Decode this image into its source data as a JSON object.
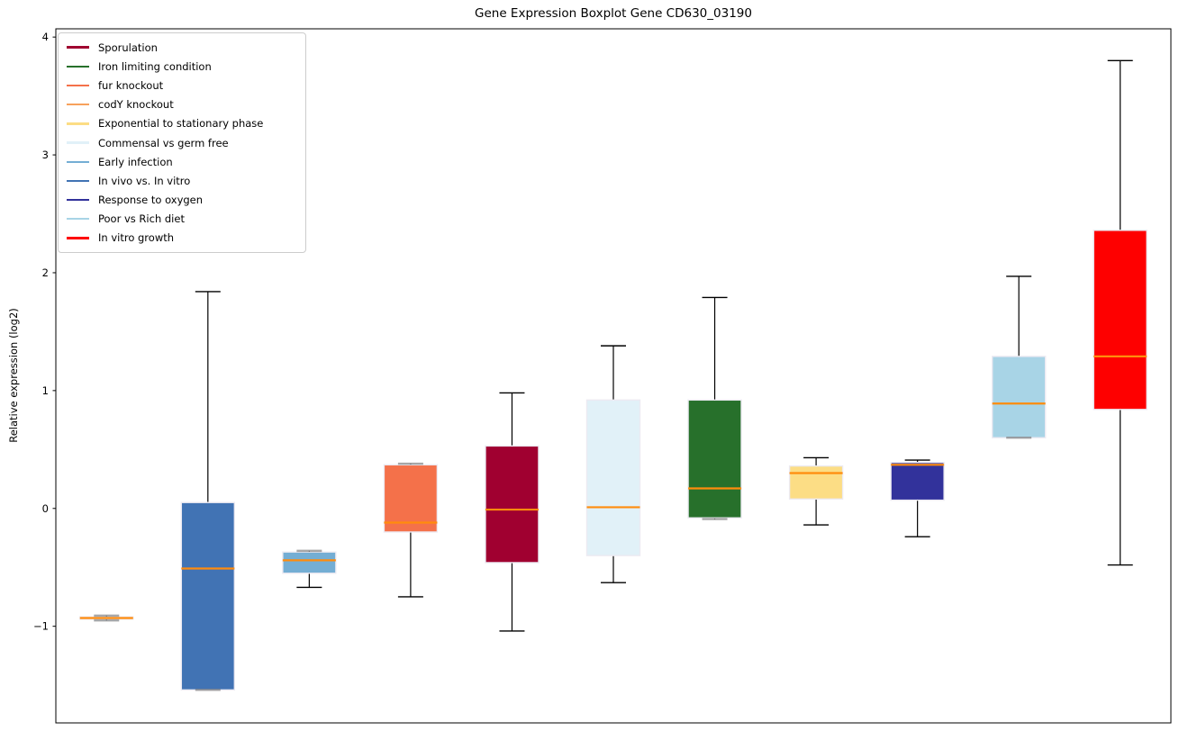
{
  "chart_data": {
    "type": "boxplot",
    "title": "Gene Expression Boxplot Gene CD630_03190",
    "ylabel": "Relative expression (log2)",
    "xlabel": "",
    "ylim": [
      -1.82,
      4.07
    ],
    "yticks": [
      4,
      3,
      2,
      1,
      0,
      -1
    ],
    "grid": false,
    "median_color": "#ff8c0d",
    "whisker_color": "#000000",
    "box_edge_color": "#eceaf2",
    "series": [
      {
        "label": "codY knockout",
        "color": "#f7a15c",
        "whisker_low": -0.95,
        "q1": -0.94,
        "median": -0.93,
        "q3": -0.92,
        "whisker_high": -0.91
      },
      {
        "label": "In vivo vs. In vitro",
        "color": "#4173b4",
        "whisker_low": -1.54,
        "q1": -1.54,
        "median": -0.51,
        "q3": 0.05,
        "whisker_high": 1.84
      },
      {
        "label": "Early infection",
        "color": "#74aed4",
        "whisker_low": -0.67,
        "q1": -0.55,
        "median": -0.44,
        "q3": -0.37,
        "whisker_high": -0.36
      },
      {
        "label": "fur knockout",
        "color": "#f4714a",
        "whisker_low": -0.75,
        "q1": -0.2,
        "median": -0.12,
        "q3": 0.37,
        "whisker_high": 0.38
      },
      {
        "label": "Sporulation",
        "color": "#a00030",
        "whisker_low": -1.04,
        "q1": -0.46,
        "median": -0.01,
        "q3": 0.53,
        "whisker_high": 0.98
      },
      {
        "label": "Commensal vs germ free",
        "color": "#e1f1f8",
        "whisker_low": -0.63,
        "q1": -0.4,
        "median": 0.01,
        "q3": 0.92,
        "whisker_high": 1.38
      },
      {
        "label": "Iron limiting condition",
        "color": "#27702b",
        "whisker_low": -0.09,
        "q1": -0.08,
        "median": 0.17,
        "q3": 0.92,
        "whisker_high": 1.79
      },
      {
        "label": "Exponential to stationary phase",
        "color": "#fcdd85",
        "whisker_low": -0.14,
        "q1": 0.08,
        "median": 0.3,
        "q3": 0.36,
        "whisker_high": 0.43
      },
      {
        "label": "Response to oxygen",
        "color": "#32329b",
        "whisker_low": -0.24,
        "q1": 0.07,
        "median": 0.37,
        "q3": 0.39,
        "whisker_high": 0.41
      },
      {
        "label": "Poor vs Rich diet",
        "color": "#a8d4e6",
        "whisker_low": 0.6,
        "q1": 0.6,
        "median": 0.89,
        "q3": 1.29,
        "whisker_high": 1.97
      },
      {
        "label": "In vitro growth",
        "color": "#fe0000",
        "whisker_low": -0.48,
        "q1": 0.84,
        "median": 1.29,
        "q3": 2.36,
        "whisker_high": 3.8
      }
    ],
    "legend": {
      "position": "upper left",
      "items": [
        {
          "label": "Sporulation",
          "color": "#a00030"
        },
        {
          "label": "Iron limiting condition",
          "color": "#27702b"
        },
        {
          "label": "fur knockout",
          "color": "#f4714a"
        },
        {
          "label": "codY knockout",
          "color": "#f7a15c"
        },
        {
          "label": "Exponential to stationary phase",
          "color": "#fcdd85"
        },
        {
          "label": "Commensal vs germ free",
          "color": "#e1f1f8"
        },
        {
          "label": "Early infection",
          "color": "#74aed4"
        },
        {
          "label": "In vivo vs. In vitro",
          "color": "#4173b4"
        },
        {
          "label": "Response to oxygen",
          "color": "#32329b"
        },
        {
          "label": "Poor vs Rich diet",
          "color": "#a8d4e6"
        },
        {
          "label": "In vitro growth",
          "color": "#fe0000"
        }
      ]
    }
  }
}
